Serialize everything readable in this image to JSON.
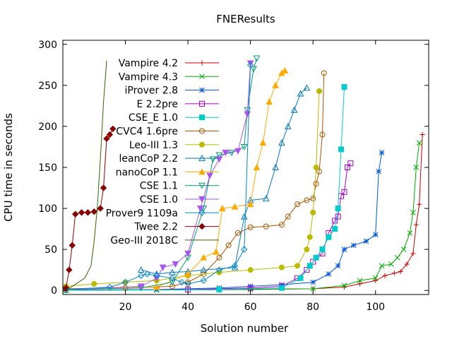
{
  "chart_data": {
    "type": "line",
    "title": "FNEResults",
    "xlabel": "Solution number",
    "ylabel": "CPU time in seconds",
    "xlim": [
      0,
      117
    ],
    "ylim": [
      -5,
      305
    ],
    "xticks": [
      20,
      40,
      60,
      80,
      100
    ],
    "yticks": [
      0,
      50,
      100,
      150,
      200,
      250,
      300
    ],
    "grid": false,
    "legend_position": "top-left",
    "series": [
      {
        "name": "Vampire 4.2",
        "color": "#cc0000",
        "marker": "plus",
        "points": [
          [
            1,
            0.3
          ],
          [
            20,
            0.5
          ],
          [
            40,
            1
          ],
          [
            60,
            1.5
          ],
          [
            80,
            2
          ],
          [
            90,
            4
          ],
          [
            95,
            8
          ],
          [
            100,
            12
          ],
          [
            103,
            18
          ],
          [
            106,
            21
          ],
          [
            108,
            23
          ],
          [
            110,
            32
          ],
          [
            112,
            45
          ],
          [
            113,
            80
          ],
          [
            114,
            105
          ],
          [
            115,
            190
          ]
        ]
      },
      {
        "name": "Vampire 4.3",
        "color": "#00aa00",
        "marker": "x",
        "points": [
          [
            1,
            0.2
          ],
          [
            30,
            0.5
          ],
          [
            60,
            1
          ],
          [
            80,
            2
          ],
          [
            90,
            6
          ],
          [
            95,
            12
          ],
          [
            100,
            15
          ],
          [
            102,
            30
          ],
          [
            105,
            32
          ],
          [
            107,
            40
          ],
          [
            109,
            50
          ],
          [
            111,
            70
          ],
          [
            112,
            95
          ],
          [
            113,
            150
          ],
          [
            114,
            180
          ]
        ]
      },
      {
        "name": "iProver 2.8",
        "color": "#0055dd",
        "marker": "star",
        "points": [
          [
            1,
            0.5
          ],
          [
            30,
            1
          ],
          [
            50,
            3
          ],
          [
            60,
            5
          ],
          [
            70,
            7
          ],
          [
            80,
            10
          ],
          [
            85,
            20
          ],
          [
            88,
            30
          ],
          [
            90,
            50
          ],
          [
            93,
            55
          ],
          [
            97,
            60
          ],
          [
            100,
            68
          ],
          [
            101,
            145
          ],
          [
            102,
            168
          ]
        ]
      },
      {
        "name": "E 2.2pre",
        "color": "#aa00cc",
        "marker": "square",
        "points": [
          [
            1,
            0.3
          ],
          [
            40,
            1
          ],
          [
            60,
            3
          ],
          [
            70,
            5
          ],
          [
            75,
            15
          ],
          [
            78,
            25
          ],
          [
            80,
            35
          ],
          [
            83,
            45
          ],
          [
            85,
            70
          ],
          [
            87,
            85
          ],
          [
            88,
            90
          ],
          [
            89,
            115
          ],
          [
            90,
            120
          ],
          [
            91,
            150
          ],
          [
            92,
            155
          ]
        ]
      },
      {
        "name": "CSE_E 1.0",
        "color": "#00cccc",
        "marker": "filled-square",
        "points": [
          [
            1,
            0.2
          ],
          [
            50,
            1
          ],
          [
            70,
            3
          ],
          [
            76,
            15
          ],
          [
            79,
            30
          ],
          [
            81,
            40
          ],
          [
            83,
            50
          ],
          [
            85,
            65
          ],
          [
            87,
            75
          ],
          [
            88,
            100
          ],
          [
            89,
            172
          ],
          [
            90,
            248
          ]
        ]
      },
      {
        "name": "CVC4 1.6pre",
        "color": "#aa5500",
        "marker": "circle",
        "points": [
          [
            1,
            2
          ],
          [
            20,
            3
          ],
          [
            35,
            5
          ],
          [
            40,
            10
          ],
          [
            45,
            20
          ],
          [
            50,
            40
          ],
          [
            53,
            55
          ],
          [
            56,
            70
          ],
          [
            60,
            77
          ],
          [
            65,
            78
          ],
          [
            70,
            80
          ],
          [
            72,
            90
          ],
          [
            75,
            105
          ],
          [
            78,
            110
          ],
          [
            80,
            112
          ],
          [
            81,
            130
          ],
          [
            82,
            145
          ],
          [
            83,
            190
          ],
          [
            83.5,
            265
          ]
        ]
      },
      {
        "name": "Leo-III 1.3",
        "color": "#bbbb00",
        "marker": "filled-circle",
        "points": [
          [
            1,
            5
          ],
          [
            10,
            8
          ],
          [
            20,
            10
          ],
          [
            30,
            12
          ],
          [
            40,
            18
          ],
          [
            50,
            22
          ],
          [
            60,
            25
          ],
          [
            70,
            28
          ],
          [
            75,
            30
          ],
          [
            78,
            50
          ],
          [
            79,
            65
          ],
          [
            80,
            95
          ],
          [
            81,
            150
          ],
          [
            82,
            243
          ]
        ]
      },
      {
        "name": "leanCoP 2.2",
        "color": "#0077bb",
        "marker": "triangle",
        "points": [
          [
            25,
            25
          ],
          [
            30,
            20
          ],
          [
            35,
            22
          ],
          [
            40,
            23
          ],
          [
            45,
            25
          ],
          [
            55,
            28
          ],
          [
            58,
            90
          ],
          [
            60,
            110
          ],
          [
            65,
            112
          ],
          [
            68,
            150
          ],
          [
            70,
            180
          ],
          [
            72,
            200
          ],
          [
            74,
            220
          ],
          [
            76,
            240
          ],
          [
            78,
            247
          ]
        ]
      },
      {
        "name": "nanoCoP 1.1",
        "color": "#ffaa00",
        "marker": "filled-triangle",
        "points": [
          [
            1,
            1
          ],
          [
            30,
            4
          ],
          [
            40,
            20
          ],
          [
            45,
            40
          ],
          [
            49,
            47
          ],
          [
            51,
            100
          ],
          [
            55,
            102
          ],
          [
            60,
            105
          ],
          [
            62,
            150
          ],
          [
            64,
            180
          ],
          [
            66,
            230
          ],
          [
            68,
            250
          ],
          [
            70,
            265
          ],
          [
            71,
            268
          ]
        ]
      },
      {
        "name": "CSE 1.1",
        "color": "#009977",
        "marker": "inv-triangle",
        "points": [
          [
            1,
            1
          ],
          [
            25,
            3
          ],
          [
            35,
            10
          ],
          [
            40,
            40
          ],
          [
            45,
            100
          ],
          [
            48,
            160
          ],
          [
            50,
            165
          ],
          [
            54,
            168
          ],
          [
            58,
            175
          ],
          [
            59,
            220
          ],
          [
            61,
            270
          ],
          [
            62,
            283
          ]
        ]
      },
      {
        "name": "CSE 1.0",
        "color": "#aa55ee",
        "marker": "filled-inv-triangle",
        "points": [
          [
            1,
            1
          ],
          [
            25,
            5
          ],
          [
            30,
            15
          ],
          [
            32,
            28
          ],
          [
            36,
            32
          ],
          [
            40,
            45
          ],
          [
            44,
            100
          ],
          [
            47,
            140
          ],
          [
            50,
            160
          ],
          [
            52,
            168
          ],
          [
            56,
            170
          ],
          [
            59,
            215
          ],
          [
            60,
            277
          ]
        ]
      },
      {
        "name": "Prover9 1109a",
        "color": "#0088cc",
        "marker": "diamond",
        "points": [
          [
            1,
            1
          ],
          [
            15,
            4
          ],
          [
            20,
            10
          ],
          [
            25,
            18
          ],
          [
            27,
            20
          ],
          [
            30,
            18
          ],
          [
            35,
            15
          ],
          [
            38,
            10
          ],
          [
            40,
            8
          ],
          [
            45,
            12
          ],
          [
            50,
            25
          ],
          [
            55,
            30
          ],
          [
            58,
            50
          ],
          [
            60,
            275
          ]
        ]
      },
      {
        "name": "Twee 2.2",
        "color": "#880000",
        "marker": "filled-diamond",
        "points": [
          [
            1,
            3
          ],
          [
            2,
            25
          ],
          [
            3,
            55
          ],
          [
            4,
            93
          ],
          [
            6,
            95
          ],
          [
            8,
            95
          ],
          [
            10,
            96
          ],
          [
            12,
            100
          ],
          [
            13,
            125
          ],
          [
            14,
            185
          ],
          [
            15,
            190
          ],
          [
            16,
            197
          ]
        ]
      },
      {
        "name": "Geo-III 2018C",
        "color": "#336600",
        "marker": "none",
        "points": [
          [
            1,
            0.5
          ],
          [
            3,
            5
          ],
          [
            5,
            10
          ],
          [
            7,
            15
          ],
          [
            9,
            30
          ],
          [
            10,
            60
          ],
          [
            11,
            100
          ],
          [
            12,
            160
          ],
          [
            13,
            230
          ],
          [
            14,
            280
          ]
        ]
      }
    ]
  }
}
